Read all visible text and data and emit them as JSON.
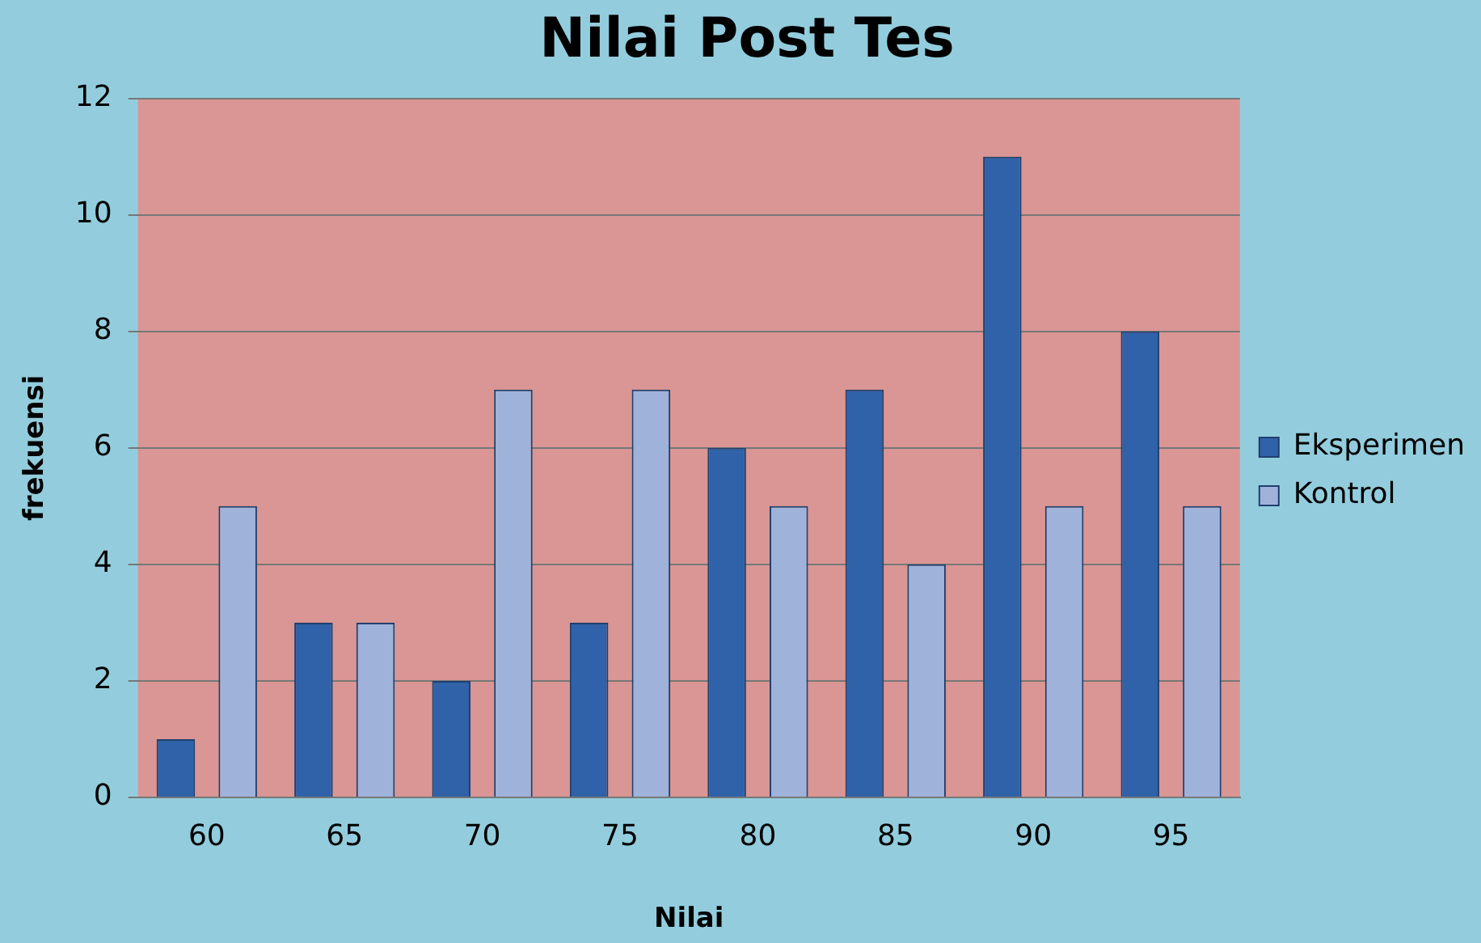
{
  "chart_data": {
    "type": "bar",
    "title": "Nilai Post Tes",
    "xlabel": "Nilai",
    "ylabel": "frekuensi",
    "categories": [
      "60",
      "65",
      "70",
      "75",
      "80",
      "85",
      "90",
      "95"
    ],
    "series": [
      {
        "name": "Eksperimen",
        "color": "#2f62a8",
        "values": [
          1,
          3,
          2,
          3,
          6,
          7,
          11,
          8
        ]
      },
      {
        "name": "Kontrol",
        "color": "#9fb3da",
        "values": [
          5,
          3,
          7,
          7,
          5,
          4,
          5,
          5
        ]
      }
    ],
    "ylim": [
      0,
      12
    ],
    "yticks": [
      0,
      2,
      4,
      6,
      8,
      10,
      12
    ],
    "grid": "y",
    "legend": "right"
  }
}
